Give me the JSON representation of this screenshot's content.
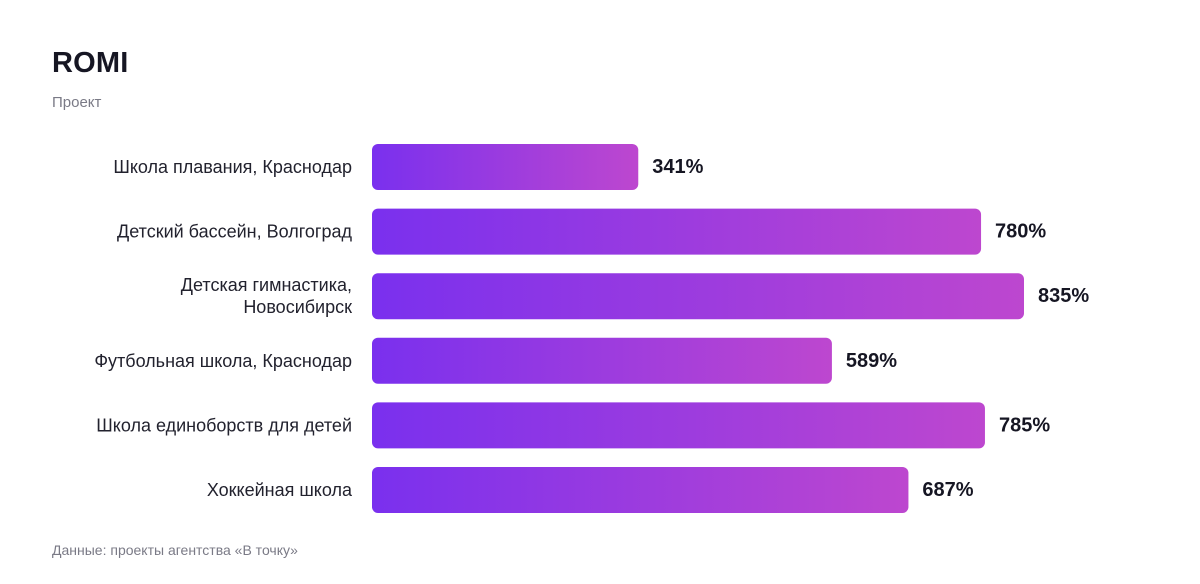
{
  "header": {
    "title": "ROMI",
    "subtitle": "Проект"
  },
  "footer": {
    "source": "Данные: проекты агентства «В точку»"
  },
  "colors": {
    "bar_gradient_start": "#7a30ee",
    "bar_gradient_end": "#bd47cf"
  },
  "chart_data": {
    "type": "bar",
    "orientation": "horizontal",
    "title": "ROMI",
    "subtitle": "Проект",
    "categories": [
      [
        "Школа плавания, Краснодар"
      ],
      [
        "Детский бассейн, Волгоград"
      ],
      [
        "Детская гимнастика,",
        "Новосибирск"
      ],
      [
        "Футбольная школа, Краснодар"
      ],
      [
        "Школа единоборств для детей"
      ],
      [
        "Хоккейная школа"
      ]
    ],
    "values": [
      341,
      780,
      835,
      589,
      785,
      687
    ],
    "value_labels": [
      "341%",
      "780%",
      "835%",
      "589%",
      "785%",
      "687%"
    ],
    "unit": "%",
    "xlim": [
      0,
      835
    ],
    "grid": false,
    "legend": "none"
  }
}
